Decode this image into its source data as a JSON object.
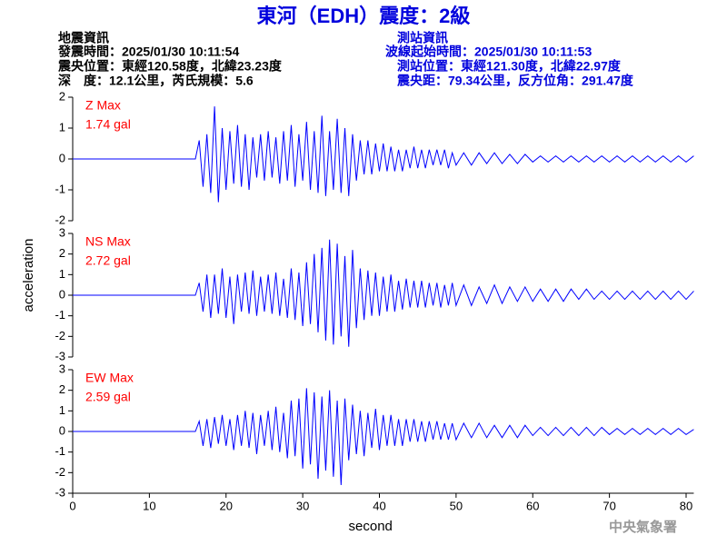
{
  "title": "東河（EDH）震度：2級",
  "quake_info": [
    "地震資訊",
    "發震時間：2025/01/30 10:11:54",
    "震央位置：東經120.58度，北緯23.23度",
    "深　度：12.1公里，芮氏規模：5.6"
  ],
  "station_info": [
    "測站資訊",
    "波線起始時間：2025/01/30 10:11:53",
    "測站位置：東經121.30度，北緯22.97度",
    "震央距：79.34公里，反方位角：291.47度"
  ],
  "credit": "中央氣象署",
  "chart_data": [
    {
      "type": "line",
      "annotations": [
        "Z Max",
        "1.74 gal"
      ],
      "annotation_color": "#ff0000",
      "xlim": [
        0,
        81
      ],
      "ylim": [
        -2,
        2
      ],
      "yticks": [
        -2,
        -1,
        0,
        1,
        2
      ],
      "x": [
        0,
        2,
        4,
        6,
        8,
        10,
        12,
        14,
        16,
        16.5,
        17,
        17.5,
        18,
        18.5,
        19,
        19.5,
        20,
        20.5,
        21,
        21.5,
        22,
        22.5,
        23,
        23.5,
        24,
        24.5,
        25,
        25.5,
        26,
        26.5,
        27,
        27.5,
        28,
        28.5,
        29,
        29.5,
        30,
        30.5,
        31,
        31.5,
        32,
        32.5,
        33,
        33.5,
        34,
        34.5,
        35,
        35.5,
        36,
        36.5,
        37,
        37.5,
        38,
        38.5,
        39,
        39.5,
        40,
        40.5,
        41,
        41.5,
        42,
        42.5,
        43,
        43.5,
        44,
        44.5,
        45,
        45.5,
        46,
        46.5,
        47,
        47.5,
        48,
        48.5,
        49,
        49.5,
        50,
        51,
        52,
        53,
        54,
        55,
        56,
        57,
        58,
        59,
        60,
        61,
        62,
        63,
        64,
        65,
        66,
        67,
        68,
        69,
        70,
        71,
        72,
        73,
        74,
        75,
        76,
        77,
        78,
        79,
        80,
        81
      ],
      "series": [
        {
          "name": "Z",
          "color": "#0000ff",
          "values": [
            0,
            0,
            0,
            0,
            0,
            0,
            0,
            0,
            0,
            0.6,
            -0.9,
            0.8,
            -1.1,
            1.7,
            -1.4,
            1.0,
            -1.0,
            0.9,
            -0.8,
            1.1,
            -0.9,
            0.8,
            -1.0,
            0.7,
            -0.6,
            0.8,
            -0.7,
            0.9,
            -0.6,
            0.7,
            -0.8,
            0.9,
            -0.7,
            1.1,
            -0.9,
            0.8,
            -0.7,
            1.2,
            -1.0,
            0.9,
            -1.1,
            1.4,
            -1.2,
            0.9,
            -1.0,
            1.3,
            -1.1,
            1.0,
            -1.2,
            0.8,
            -0.7,
            0.6,
            -0.5,
            0.6,
            -0.5,
            0.5,
            -0.4,
            0.5,
            -0.4,
            0.4,
            -0.4,
            0.3,
            -0.4,
            0.3,
            -0.3,
            0.4,
            -0.3,
            0.3,
            -0.3,
            0.3,
            -0.2,
            0.3,
            -0.2,
            0.3,
            -0.3,
            0.2,
            -0.2,
            0.2,
            -0.2,
            0.2,
            -0.15,
            0.2,
            -0.15,
            0.15,
            -0.15,
            0.15,
            -0.1,
            0.1,
            -0.1,
            0.1,
            -0.1,
            0.1,
            -0.1,
            0.1,
            -0.1,
            0.1,
            -0.1,
            0.1,
            -0.1,
            0.1,
            -0.1,
            0.1,
            -0.1,
            0.1,
            -0.1,
            0.1,
            -0.1,
            0.1
          ]
        }
      ]
    },
    {
      "type": "line",
      "annotations": [
        "NS Max",
        "2.72 gal"
      ],
      "annotation_color": "#ff0000",
      "ylabel": "acceleration",
      "xlim": [
        0,
        81
      ],
      "ylim": [
        -3,
        3
      ],
      "yticks": [
        -3,
        -2,
        -1,
        0,
        1,
        2,
        3
      ],
      "x": [
        0,
        2,
        4,
        6,
        8,
        10,
        12,
        14,
        16,
        16.5,
        17,
        17.5,
        18,
        18.5,
        19,
        19.5,
        20,
        20.5,
        21,
        21.5,
        22,
        22.5,
        23,
        23.5,
        24,
        24.5,
        25,
        25.5,
        26,
        26.5,
        27,
        27.5,
        28,
        28.5,
        29,
        29.5,
        30,
        30.5,
        31,
        31.5,
        32,
        32.5,
        33,
        33.5,
        34,
        34.5,
        35,
        35.5,
        36,
        36.5,
        37,
        37.5,
        38,
        38.5,
        39,
        39.5,
        40,
        40.5,
        41,
        41.5,
        42,
        42.5,
        43,
        43.5,
        44,
        44.5,
        45,
        45.5,
        46,
        46.5,
        47,
        47.5,
        48,
        48.5,
        49,
        49.5,
        50,
        51,
        52,
        53,
        54,
        55,
        56,
        57,
        58,
        59,
        60,
        61,
        62,
        63,
        64,
        65,
        66,
        67,
        68,
        69,
        70,
        71,
        72,
        73,
        74,
        75,
        76,
        77,
        78,
        79,
        80,
        81
      ],
      "series": [
        {
          "name": "NS",
          "color": "#0000ff",
          "values": [
            0,
            0,
            0,
            0,
            0,
            0,
            0,
            0,
            0,
            0.6,
            -0.8,
            1.0,
            -1.1,
            1.0,
            -0.9,
            1.3,
            -1.1,
            0.9,
            -1.4,
            1.0,
            -0.8,
            1.1,
            -0.9,
            1.2,
            -1.0,
            0.9,
            -0.8,
            1.0,
            -0.9,
            1.1,
            -1.0,
            0.8,
            -1.1,
            1.3,
            -1.2,
            1.1,
            -1.5,
            1.6,
            -1.4,
            2.0,
            -1.8,
            2.3,
            -2.2,
            2.7,
            -2.4,
            2.5,
            -2.0,
            1.9,
            -2.5,
            2.2,
            -1.6,
            1.3,
            -1.2,
            1.2,
            -1.0,
            1.1,
            -1.0,
            0.9,
            -0.8,
            1.0,
            -0.8,
            0.7,
            -0.7,
            0.8,
            -0.6,
            0.7,
            -0.6,
            0.7,
            -0.6,
            0.6,
            -0.5,
            0.6,
            -0.6,
            0.5,
            -0.5,
            0.6,
            -0.5,
            0.5,
            -0.5,
            0.4,
            -0.4,
            0.5,
            -0.4,
            0.4,
            -0.3,
            0.4,
            -0.3,
            0.3,
            -0.3,
            0.3,
            -0.3,
            0.3,
            -0.2,
            0.3,
            -0.2,
            0.2,
            -0.2,
            0.2,
            -0.2,
            0.2,
            -0.2,
            0.2,
            -0.2,
            0.2,
            -0.2,
            0.2,
            -0.2,
            0.2
          ]
        }
      ]
    },
    {
      "type": "line",
      "annotations": [
        "EW Max",
        "2.59 gal"
      ],
      "annotation_color": "#ff0000",
      "xlabel": "second",
      "xlim": [
        0,
        81
      ],
      "xticks": [
        0,
        10,
        20,
        30,
        40,
        50,
        60,
        70,
        80
      ],
      "ylim": [
        -3,
        3
      ],
      "yticks": [
        -3,
        -2,
        -1,
        0,
        1,
        2,
        3
      ],
      "x": [
        0,
        2,
        4,
        6,
        8,
        10,
        12,
        14,
        16,
        16.5,
        17,
        17.5,
        18,
        18.5,
        19,
        19.5,
        20,
        20.5,
        21,
        21.5,
        22,
        22.5,
        23,
        23.5,
        24,
        24.5,
        25,
        25.5,
        26,
        26.5,
        27,
        27.5,
        28,
        28.5,
        29,
        29.5,
        30,
        30.5,
        31,
        31.5,
        32,
        32.5,
        33,
        33.5,
        34,
        34.5,
        35,
        35.5,
        36,
        36.5,
        37,
        37.5,
        38,
        38.5,
        39,
        39.5,
        40,
        40.5,
        41,
        41.5,
        42,
        42.5,
        43,
        43.5,
        44,
        44.5,
        45,
        45.5,
        46,
        46.5,
        47,
        47.5,
        48,
        48.5,
        49,
        49.5,
        50,
        51,
        52,
        53,
        54,
        55,
        56,
        57,
        58,
        59,
        60,
        61,
        62,
        63,
        64,
        65,
        66,
        67,
        68,
        69,
        70,
        71,
        72,
        73,
        74,
        75,
        76,
        77,
        78,
        79,
        80,
        81
      ],
      "series": [
        {
          "name": "EW",
          "color": "#0000ff",
          "values": [
            0,
            0,
            0,
            0,
            0,
            0,
            0,
            0,
            0,
            0.5,
            -0.7,
            0.6,
            -0.8,
            0.7,
            -0.6,
            0.8,
            -0.7,
            0.6,
            -0.9,
            0.8,
            -0.7,
            1.0,
            -0.8,
            0.9,
            -1.1,
            0.8,
            -0.7,
            1.0,
            -0.9,
            1.2,
            -1.0,
            0.9,
            -1.3,
            1.5,
            -1.2,
            1.6,
            -1.8,
            2.1,
            -1.6,
            1.9,
            -2.3,
            1.7,
            -1.9,
            2.0,
            -2.2,
            1.5,
            -2.6,
            1.6,
            -1.4,
            1.3,
            -1.1,
            1.0,
            -1.2,
            0.9,
            -0.8,
            1.1,
            -0.9,
            0.8,
            -0.7,
            0.8,
            -0.7,
            0.6,
            -0.7,
            0.6,
            -0.5,
            0.6,
            -0.5,
            0.5,
            -0.5,
            0.5,
            -0.4,
            0.5,
            -0.4,
            0.4,
            -0.4,
            0.4,
            -0.4,
            0.4,
            -0.3,
            0.4,
            -0.3,
            0.3,
            -0.3,
            0.3,
            -0.3,
            0.3,
            -0.2,
            0.2,
            -0.2,
            0.2,
            -0.2,
            0.2,
            -0.2,
            0.2,
            -0.2,
            0.2,
            -0.15,
            0.15,
            -0.15,
            0.15,
            -0.15,
            0.15,
            -0.15,
            0.15,
            -0.15,
            0.15,
            -0.15,
            0.1
          ]
        }
      ]
    }
  ]
}
